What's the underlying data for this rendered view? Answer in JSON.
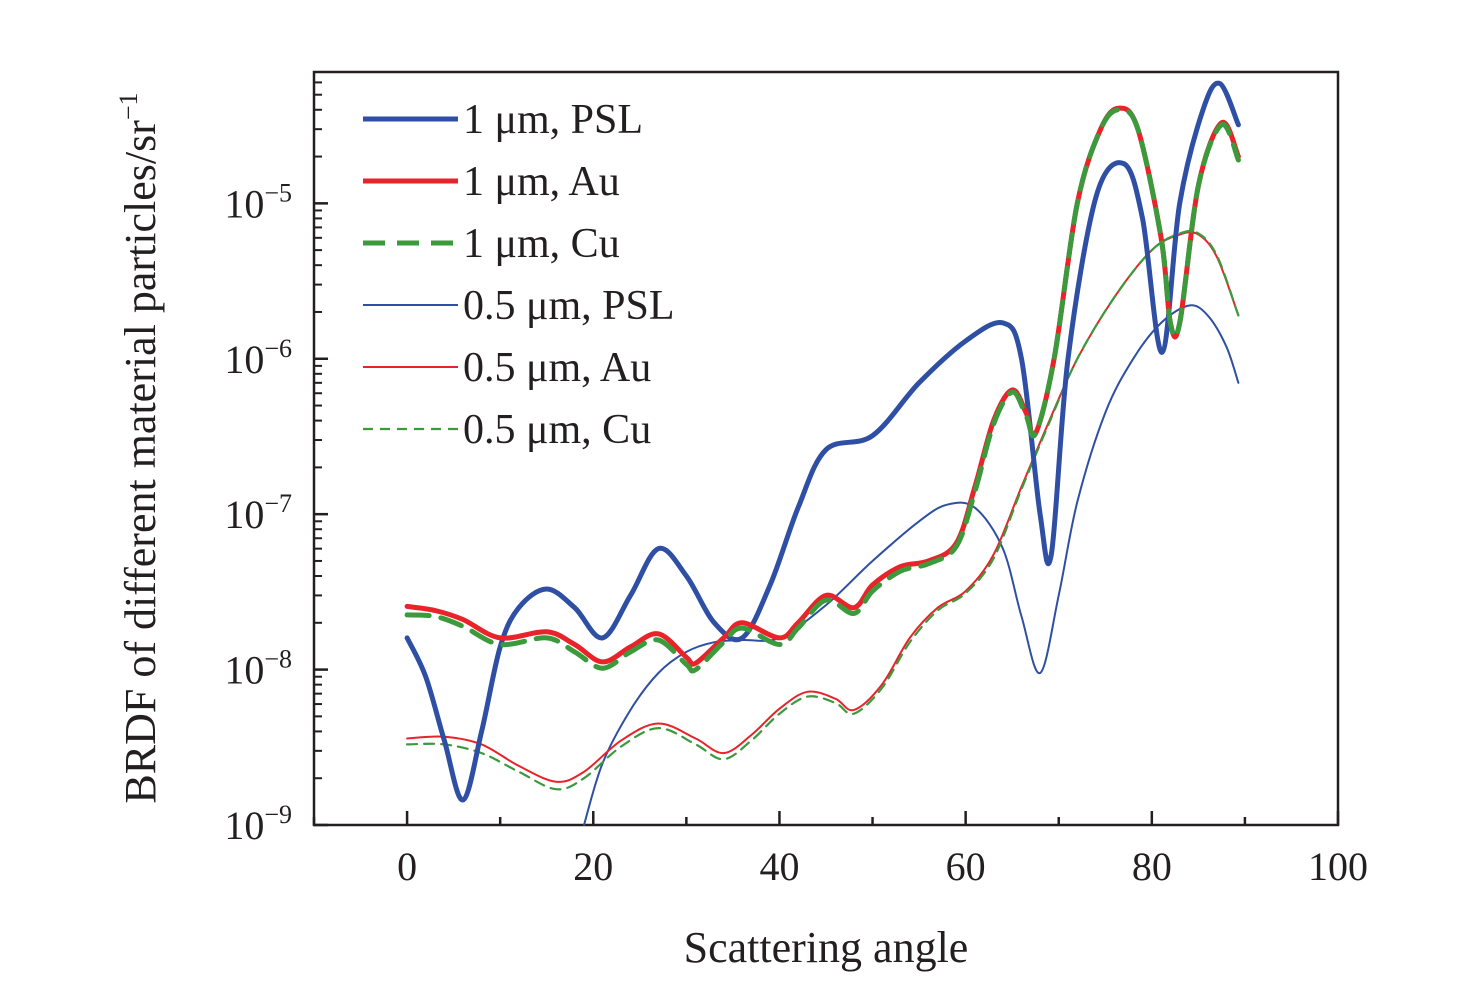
{
  "chart_data": {
    "type": "line",
    "xlabel": "Scattering angle",
    "ylabel": "BRDF of different material particles/sr",
    "ylabel_exp": "−1",
    "xlim": [
      -10,
      100
    ],
    "ylim": [
      1e-09,
      7e-05
    ],
    "yscale": "log",
    "xticks": [
      0,
      20,
      40,
      60,
      80,
      100
    ],
    "xtick_labels": [
      "0",
      "20",
      "40",
      "60",
      "80",
      "100"
    ],
    "yticks": [
      1e-09,
      1e-08,
      1e-07,
      1e-06,
      1e-05
    ],
    "ytick_base": "10",
    "ytick_exps": [
      "−9",
      "−8",
      "−7",
      "−6",
      "−5"
    ],
    "legend_position": "top-left",
    "grid": false,
    "series": [
      {
        "name": "1 μm, PSL",
        "color": "#2e4fa3",
        "style": "solid-thick",
        "points": [
          [
            0,
            1.6e-08
          ],
          [
            2,
            9e-09
          ],
          [
            4,
            3.5e-09
          ],
          [
            6,
            1.45e-09
          ],
          [
            8,
            4e-09
          ],
          [
            10,
            1.4e-08
          ],
          [
            12,
            2.5e-08
          ],
          [
            15,
            3.3e-08
          ],
          [
            18,
            2.5e-08
          ],
          [
            21,
            1.6e-08
          ],
          [
            24,
            3e-08
          ],
          [
            27,
            6e-08
          ],
          [
            30,
            4e-08
          ],
          [
            33,
            2e-08
          ],
          [
            36,
            1.6e-08
          ],
          [
            39,
            3.5e-08
          ],
          [
            42,
            1.1e-07
          ],
          [
            45,
            2.6e-07
          ],
          [
            50,
            3.2e-07
          ],
          [
            55,
            7e-07
          ],
          [
            60,
            1.3e-06
          ],
          [
            64,
            1.7e-06
          ],
          [
            66,
            1e-06
          ],
          [
            68,
            1e-07
          ],
          [
            69.2,
            5.5e-08
          ],
          [
            71,
            1e-06
          ],
          [
            74,
            1.1e-05
          ],
          [
            77,
            1.8e-05
          ],
          [
            79,
            8e-06
          ],
          [
            81.1,
            1.1e-06
          ],
          [
            83,
            1e-05
          ],
          [
            85.5,
            4e-05
          ],
          [
            87.3,
            5.9e-05
          ],
          [
            89.3,
            3.2e-05
          ]
        ]
      },
      {
        "name": "1 μm, Au",
        "color": "#e8232a",
        "style": "solid-thick",
        "points": [
          [
            0,
            2.55e-08
          ],
          [
            3,
            2.4e-08
          ],
          [
            6,
            2.1e-08
          ],
          [
            10,
            1.6e-08
          ],
          [
            15,
            1.75e-08
          ],
          [
            18,
            1.45e-08
          ],
          [
            21,
            1.12e-08
          ],
          [
            24,
            1.4e-08
          ],
          [
            27,
            1.7e-08
          ],
          [
            30,
            1.2e-08
          ],
          [
            31,
            1.1e-08
          ],
          [
            34,
            1.6e-08
          ],
          [
            36,
            2e-08
          ],
          [
            40,
            1.6e-08
          ],
          [
            42,
            2e-08
          ],
          [
            45,
            3e-08
          ],
          [
            48,
            2.5e-08
          ],
          [
            50,
            3.5e-08
          ],
          [
            53,
            4.6e-08
          ],
          [
            56,
            5e-08
          ],
          [
            59,
            6.5e-08
          ],
          [
            61,
            1.5e-07
          ],
          [
            63,
            4e-07
          ],
          [
            65,
            6.3e-07
          ],
          [
            66.5,
            4.5e-07
          ],
          [
            67.5,
            3.3e-07
          ],
          [
            69.5,
            1e-06
          ],
          [
            72,
            1e-05
          ],
          [
            74.5,
            3e-05
          ],
          [
            76.5,
            4.1e-05
          ],
          [
            78.5,
            3e-05
          ],
          [
            81,
            6e-06
          ],
          [
            82,
            1.7e-06
          ],
          [
            83,
            1.7e-06
          ],
          [
            85,
            1.3e-05
          ],
          [
            87.5,
            3.3e-05
          ],
          [
            89.3,
            2e-05
          ]
        ]
      },
      {
        "name": "1 μm, Cu",
        "color": "#3a9a3c",
        "style": "dashed-thick",
        "points": [
          [
            0,
            2.25e-08
          ],
          [
            3,
            2.2e-08
          ],
          [
            6,
            1.9e-08
          ],
          [
            10,
            1.45e-08
          ],
          [
            15,
            1.6e-08
          ],
          [
            18,
            1.3e-08
          ],
          [
            21,
            1.02e-08
          ],
          [
            24,
            1.3e-08
          ],
          [
            27,
            1.55e-08
          ],
          [
            30,
            1.08e-08
          ],
          [
            31,
            1e-08
          ],
          [
            34,
            1.5e-08
          ],
          [
            36,
            1.85e-08
          ],
          [
            40,
            1.45e-08
          ],
          [
            42,
            1.85e-08
          ],
          [
            45,
            2.8e-08
          ],
          [
            48,
            2.3e-08
          ],
          [
            50,
            3.2e-08
          ],
          [
            53,
            4.3e-08
          ],
          [
            56,
            4.8e-08
          ],
          [
            59,
            6.2e-08
          ],
          [
            61,
            1.4e-07
          ],
          [
            63,
            3.8e-07
          ],
          [
            65,
            6.1e-07
          ],
          [
            66.5,
            4.3e-07
          ],
          [
            67.5,
            3.3e-07
          ],
          [
            69.5,
            1e-06
          ],
          [
            72,
            1e-05
          ],
          [
            74.5,
            3e-05
          ],
          [
            76.5,
            4e-05
          ],
          [
            78.5,
            3e-05
          ],
          [
            81,
            6e-06
          ],
          [
            82,
            1.7e-06
          ],
          [
            83,
            1.7e-06
          ],
          [
            85,
            1.3e-05
          ],
          [
            87.5,
            3.2e-05
          ],
          [
            89.3,
            1.9e-05
          ]
        ]
      },
      {
        "name": "0.5 μm, PSL",
        "color": "#2e4fa3",
        "style": "solid-thin",
        "points": [
          [
            19,
            1e-09
          ],
          [
            21,
            2.5e-09
          ],
          [
            24,
            5.5e-09
          ],
          [
            27,
            9.5e-09
          ],
          [
            30,
            1.3e-08
          ],
          [
            33,
            1.5e-08
          ],
          [
            36,
            1.55e-08
          ],
          [
            40,
            1.6e-08
          ],
          [
            45,
            2.6e-08
          ],
          [
            50,
            5e-08
          ],
          [
            55,
            9e-08
          ],
          [
            58,
            1.15e-07
          ],
          [
            61,
            1.1e-07
          ],
          [
            64,
            6e-08
          ],
          [
            66,
            2.2e-08
          ],
          [
            68,
            9.5e-09
          ],
          [
            70,
            3e-08
          ],
          [
            72,
            1.2e-07
          ],
          [
            75,
            4.5e-07
          ],
          [
            78,
            1e-06
          ],
          [
            81,
            1.7e-06
          ],
          [
            84,
            2.2e-06
          ],
          [
            86,
            1.9e-06
          ],
          [
            88,
            1.2e-06
          ],
          [
            89.3,
            7e-07
          ]
        ]
      },
      {
        "name": "0.5 μm, Au",
        "color": "#e8232a",
        "style": "solid-thin",
        "points": [
          [
            0,
            3.6e-09
          ],
          [
            4,
            3.7e-09
          ],
          [
            8,
            3.3e-09
          ],
          [
            12,
            2.4e-09
          ],
          [
            16,
            1.9e-09
          ],
          [
            19,
            2.2e-09
          ],
          [
            23,
            3.5e-09
          ],
          [
            27,
            4.5e-09
          ],
          [
            31,
            3.6e-09
          ],
          [
            34,
            2.9e-09
          ],
          [
            37,
            3.8e-09
          ],
          [
            40,
            5.6e-09
          ],
          [
            43,
            7.2e-09
          ],
          [
            46,
            6.5e-09
          ],
          [
            48,
            5.5e-09
          ],
          [
            51,
            8e-09
          ],
          [
            54,
            1.6e-08
          ],
          [
            57,
            2.5e-08
          ],
          [
            60,
            3.2e-08
          ],
          [
            63,
            5.5e-08
          ],
          [
            66,
            1.5e-07
          ],
          [
            69,
            4e-07
          ],
          [
            72,
            1e-06
          ],
          [
            76,
            2.5e-06
          ],
          [
            80,
            5e-06
          ],
          [
            83,
            6.3e-06
          ],
          [
            85,
            6.3e-06
          ],
          [
            87,
            4.5e-06
          ],
          [
            89.3,
            1.9e-06
          ]
        ]
      },
      {
        "name": "0.5 μm, Cu",
        "color": "#3a9a3c",
        "style": "dashed-thin",
        "points": [
          [
            0,
            3.3e-09
          ],
          [
            4,
            3.3e-09
          ],
          [
            8,
            2.9e-09
          ],
          [
            12,
            2.2e-09
          ],
          [
            16,
            1.7e-09
          ],
          [
            19,
            2e-09
          ],
          [
            23,
            3.2e-09
          ],
          [
            27,
            4.2e-09
          ],
          [
            31,
            3.3e-09
          ],
          [
            34,
            2.65e-09
          ],
          [
            37,
            3.5e-09
          ],
          [
            40,
            5.2e-09
          ],
          [
            43,
            6.7e-09
          ],
          [
            46,
            6.1e-09
          ],
          [
            48,
            5.2e-09
          ],
          [
            51,
            7.6e-09
          ],
          [
            54,
            1.5e-08
          ],
          [
            57,
            2.4e-08
          ],
          [
            60,
            3.1e-08
          ],
          [
            63,
            5.2e-08
          ],
          [
            66,
            1.45e-07
          ],
          [
            69,
            3.9e-07
          ],
          [
            72,
            1e-06
          ],
          [
            76,
            2.5e-06
          ],
          [
            80,
            5e-06
          ],
          [
            83,
            6.4e-06
          ],
          [
            85,
            6.4e-06
          ],
          [
            87,
            4.6e-06
          ],
          [
            89.3,
            1.9e-06
          ]
        ]
      }
    ]
  }
}
